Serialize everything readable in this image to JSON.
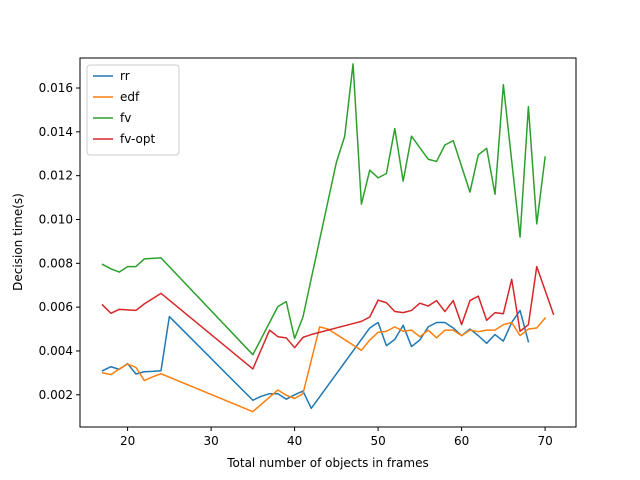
{
  "chart_data": {
    "type": "line",
    "title": "",
    "xlabel": "Total number of objects in frames",
    "ylabel": "Decision time(s)",
    "xlim": [
      14.3,
      73.7
    ],
    "ylim": [
      0.00053,
      0.01737
    ],
    "xticks": [
      20,
      30,
      40,
      50,
      60,
      70
    ],
    "yticks": [
      0.002,
      0.004,
      0.006,
      0.008,
      0.01,
      0.012,
      0.014,
      0.016
    ],
    "ytick_labels": [
      "0.002",
      "0.004",
      "0.006",
      "0.008",
      "0.010",
      "0.012",
      "0.014",
      "0.016"
    ],
    "legend_position": "top-left",
    "grid": false,
    "series": [
      {
        "name": "rr",
        "color": "#1f77b4",
        "points": [
          [
            17,
            0.0031
          ],
          [
            18,
            0.00328
          ],
          [
            19,
            0.00316
          ],
          [
            20,
            0.00342
          ],
          [
            21,
            0.00295
          ],
          [
            22,
            0.00305
          ],
          [
            23,
            0.00307
          ],
          [
            24,
            0.0031
          ],
          [
            25,
            0.00557
          ],
          [
            35,
            0.00175
          ],
          [
            36,
            0.00193
          ],
          [
            37,
            0.00205
          ],
          [
            38,
            0.00205
          ],
          [
            39,
            0.0018
          ],
          [
            40,
            0.002
          ],
          [
            41,
            0.00217
          ],
          [
            42,
            0.00138
          ],
          [
            49,
            0.00505
          ],
          [
            50,
            0.0053
          ],
          [
            51,
            0.00424
          ],
          [
            52,
            0.00453
          ],
          [
            53,
            0.00517
          ],
          [
            54,
            0.0042
          ],
          [
            55,
            0.0045
          ],
          [
            56,
            0.0051
          ],
          [
            57,
            0.0053
          ],
          [
            58,
            0.0053
          ],
          [
            59,
            0.00505
          ],
          [
            60,
            0.0047
          ],
          [
            61,
            0.005
          ],
          [
            62,
            0.0047
          ],
          [
            63,
            0.00435
          ],
          [
            64,
            0.00475
          ],
          [
            65,
            0.00445
          ],
          [
            66,
            0.0053
          ],
          [
            67,
            0.00585
          ],
          [
            68,
            0.00442
          ]
        ]
      },
      {
        "name": "edf",
        "color": "#ff7f0e",
        "points": [
          [
            17,
            0.003
          ],
          [
            18,
            0.00292
          ],
          [
            19,
            0.00318
          ],
          [
            20,
            0.0034
          ],
          [
            21,
            0.00325
          ],
          [
            22,
            0.00265
          ],
          [
            23,
            0.00282
          ],
          [
            24,
            0.00296
          ],
          [
            35,
            0.00123
          ],
          [
            38,
            0.00222
          ],
          [
            39,
            0.00198
          ],
          [
            40,
            0.00183
          ],
          [
            41,
            0.00205
          ],
          [
            43,
            0.0051
          ],
          [
            44,
            0.005
          ],
          [
            48,
            0.00403
          ],
          [
            49,
            0.0045
          ],
          [
            50,
            0.00485
          ],
          [
            51,
            0.0049
          ],
          [
            52,
            0.0051
          ],
          [
            53,
            0.0049
          ],
          [
            54,
            0.00495
          ],
          [
            55,
            0.00465
          ],
          [
            56,
            0.00495
          ],
          [
            57,
            0.0046
          ],
          [
            58,
            0.00495
          ],
          [
            59,
            0.00495
          ],
          [
            60,
            0.0047
          ],
          [
            61,
            0.00495
          ],
          [
            62,
            0.00488
          ],
          [
            63,
            0.00495
          ],
          [
            64,
            0.00495
          ],
          [
            65,
            0.0052
          ],
          [
            66,
            0.0053
          ],
          [
            67,
            0.0047
          ],
          [
            68,
            0.005
          ],
          [
            69,
            0.00505
          ],
          [
            70,
            0.0055
          ]
        ]
      },
      {
        "name": "fv",
        "color": "#2ca02c",
        "points": [
          [
            17,
            0.00795
          ],
          [
            18,
            0.00775
          ],
          [
            19,
            0.0076
          ],
          [
            20,
            0.00785
          ],
          [
            21,
            0.00785
          ],
          [
            22,
            0.0082
          ],
          [
            24,
            0.00825
          ],
          [
            35,
            0.00383
          ],
          [
            38,
            0.00603
          ],
          [
            39,
            0.00625
          ],
          [
            40,
            0.00457
          ],
          [
            41,
            0.00555
          ],
          [
            45,
            0.0126
          ],
          [
            46,
            0.0138
          ],
          [
            47,
            0.0171
          ],
          [
            48,
            0.0107
          ],
          [
            49,
            0.01225
          ],
          [
            50,
            0.0119
          ],
          [
            51,
            0.0121
          ],
          [
            52,
            0.01415
          ],
          [
            53,
            0.01175
          ],
          [
            54,
            0.0138
          ],
          [
            56,
            0.01275
          ],
          [
            57,
            0.01265
          ],
          [
            58,
            0.0134
          ],
          [
            59,
            0.0136
          ],
          [
            61,
            0.01125
          ],
          [
            62,
            0.01295
          ],
          [
            63,
            0.01325
          ],
          [
            64,
            0.01115
          ],
          [
            65,
            0.01615
          ],
          [
            67,
            0.0092
          ],
          [
            68,
            0.01515
          ],
          [
            69,
            0.0098
          ],
          [
            70,
            0.01285
          ]
        ]
      },
      {
        "name": "fv-opt",
        "color": "#d62728",
        "points": [
          [
            17,
            0.0061
          ],
          [
            18,
            0.00572
          ],
          [
            19,
            0.0059
          ],
          [
            21,
            0.00585
          ],
          [
            22,
            0.00615
          ],
          [
            24,
            0.00663
          ],
          [
            35,
            0.00318
          ],
          [
            37,
            0.00495
          ],
          [
            38,
            0.00465
          ],
          [
            39,
            0.0046
          ],
          [
            40,
            0.00415
          ],
          [
            41,
            0.00462
          ],
          [
            42,
            0.00475
          ],
          [
            47,
            0.00525
          ],
          [
            48,
            0.00535
          ],
          [
            49,
            0.00555
          ],
          [
            50,
            0.00632
          ],
          [
            51,
            0.0062
          ],
          [
            52,
            0.0058
          ],
          [
            53,
            0.00575
          ],
          [
            54,
            0.00585
          ],
          [
            55,
            0.00618
          ],
          [
            56,
            0.00605
          ],
          [
            57,
            0.0063
          ],
          [
            58,
            0.0058
          ],
          [
            59,
            0.0063
          ],
          [
            60,
            0.0052
          ],
          [
            61,
            0.0063
          ],
          [
            62,
            0.0065
          ],
          [
            63,
            0.0054
          ],
          [
            64,
            0.00575
          ],
          [
            65,
            0.0057
          ],
          [
            66,
            0.00727
          ],
          [
            67,
            0.0049
          ],
          [
            68,
            0.0052
          ],
          [
            69,
            0.00785
          ],
          [
            71,
            0.00568
          ]
        ]
      }
    ]
  }
}
